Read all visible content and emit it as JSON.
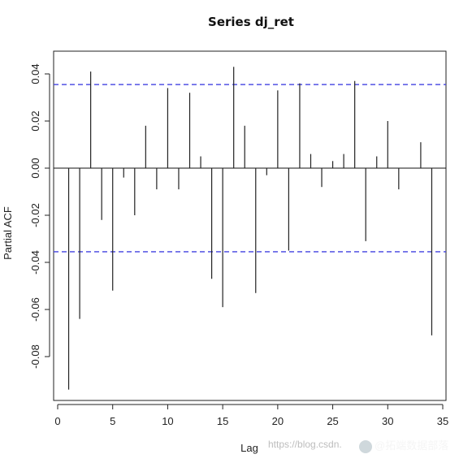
{
  "chart_data": {
    "type": "bar",
    "title": "Series  dj_ret",
    "xlabel": "Lag",
    "ylabel": "Partial ACF",
    "xlim": [
      0,
      35
    ],
    "ylim": [
      -0.1,
      0.047
    ],
    "x_ticks": [
      0,
      5,
      10,
      15,
      20,
      25,
      30,
      35
    ],
    "y_ticks": [
      0.04,
      0.02,
      0.0,
      -0.02,
      -0.04,
      -0.06,
      -0.08
    ],
    "y_tick_labels": [
      "0.04",
      "0.02",
      "0.00",
      "-0.02",
      "-0.04",
      "-0.06",
      "-0.08"
    ],
    "confidence_bounds": [
      0.0355,
      -0.0355
    ],
    "confidence_color": "#4040e0",
    "lags": [
      1,
      2,
      3,
      4,
      5,
      6,
      7,
      8,
      9,
      10,
      11,
      12,
      13,
      14,
      15,
      16,
      17,
      18,
      19,
      20,
      21,
      22,
      23,
      24,
      25,
      26,
      27,
      28,
      29,
      30,
      31,
      32,
      33,
      34
    ],
    "values": [
      -0.094,
      -0.064,
      0.041,
      -0.022,
      -0.052,
      -0.004,
      -0.02,
      0.018,
      -0.009,
      0.034,
      -0.009,
      0.032,
      0.005,
      -0.047,
      -0.059,
      0.043,
      0.018,
      -0.053,
      -0.003,
      0.033,
      -0.035,
      0.036,
      0.006,
      -0.008,
      0.003,
      0.006,
      0.037,
      -0.031,
      0.005,
      0.02,
      -0.009,
      0.0,
      0.011,
      -0.071
    ],
    "grid": false,
    "legend": "none"
  },
  "watermark": {
    "url_text": "https://blog.csdn.",
    "brand_text": "@拓端数据部落"
  }
}
